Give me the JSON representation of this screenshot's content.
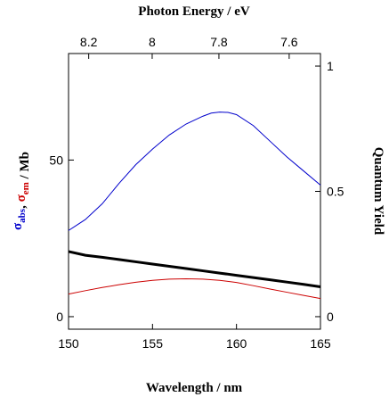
{
  "chart_data": {
    "type": "line",
    "xlabel": "Wavelength / nm",
    "top_xlabel": "Photon Energy / eV",
    "ylabel_left": {
      "parts": [
        {
          "text": "σ",
          "sub": "abs",
          "color": "#0000cc"
        },
        {
          "text": ", ",
          "sub": "",
          "color": "#000000"
        },
        {
          "text": "σ",
          "sub": "em",
          "color": "#cc0000"
        },
        {
          "text": " / Mb",
          "sub": "",
          "color": "#000000"
        }
      ]
    },
    "ylabel_right": "Quantum Yield",
    "xlim": [
      150,
      165
    ],
    "ylim_left": [
      -4,
      84
    ],
    "ylim_right": [
      -0.05,
      1.05
    ],
    "x_ticks": [
      150,
      155,
      160,
      165
    ],
    "x_tick_labels": [
      "150",
      "155",
      "160",
      "165"
    ],
    "y_left_ticks": [
      0,
      50
    ],
    "y_left_tick_labels": [
      "0",
      "50"
    ],
    "y_right_ticks": [
      0,
      0.5,
      1
    ],
    "y_right_tick_labels": [
      "0",
      "0.5",
      "1"
    ],
    "top_ticks_ev": [
      8.2,
      8.0,
      7.8,
      7.6
    ],
    "top_tick_labels": [
      "8.2",
      "8",
      "7.8",
      "7.6"
    ],
    "grid": false,
    "series": [
      {
        "axis": "left",
        "color": "#0000cc",
        "width": 1,
        "x": [
          150,
          151,
          152,
          153,
          154,
          155,
          156,
          157,
          158,
          158.5,
          159,
          159.5,
          160,
          161,
          162,
          163,
          164,
          165
        ],
        "y": [
          27.5,
          31,
          36,
          42.5,
          48.5,
          53.5,
          58,
          61.5,
          64,
          65,
          65.3,
          65.2,
          64.5,
          61,
          56,
          51,
          46.5,
          42
        ]
      },
      {
        "axis": "left",
        "color": "#cc0000",
        "width": 1,
        "x": [
          150,
          151,
          152,
          153,
          154,
          155,
          156,
          157,
          158,
          159,
          160,
          161,
          162,
          163,
          164,
          165
        ],
        "y": [
          7.2,
          8.3,
          9.3,
          10.2,
          11,
          11.6,
          12,
          12.1,
          12,
          11.6,
          10.9,
          9.9,
          8.8,
          7.8,
          6.8,
          5.8
        ]
      },
      {
        "axis": "right",
        "color": "#000000",
        "width": 3,
        "x": [
          150,
          151,
          152,
          153,
          154,
          155,
          156,
          157,
          158,
          159,
          160,
          161,
          162,
          163,
          164,
          165
        ],
        "y": [
          0.26,
          0.245,
          0.237,
          0.228,
          0.219,
          0.21,
          0.201,
          0.192,
          0.183,
          0.174,
          0.165,
          0.156,
          0.147,
          0.138,
          0.129,
          0.119
        ]
      }
    ]
  }
}
